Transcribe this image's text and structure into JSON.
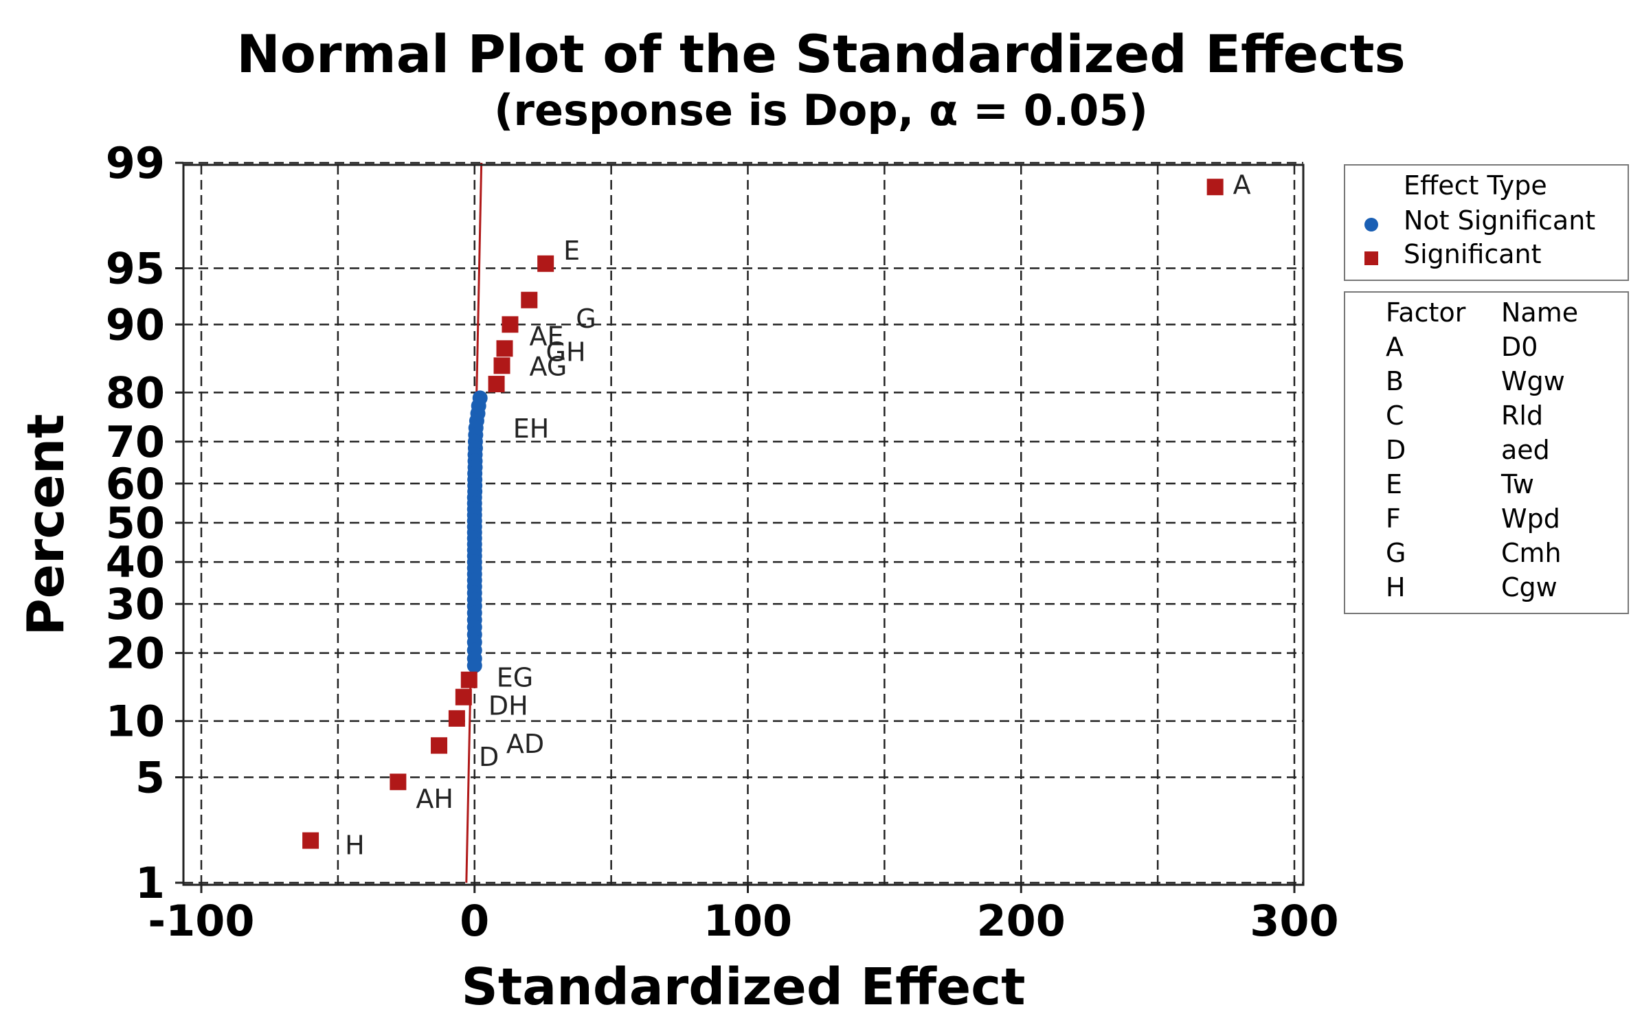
{
  "chart_data": {
    "type": "scatter",
    "title": "Normal Plot of the Standardized Effects",
    "subtitle": "(response is Dop, α = 0.05)",
    "xlabel": "Standardized Effect",
    "ylabel": "Percent",
    "xlim": [
      -105,
      305
    ],
    "xticks": [
      -100,
      0,
      100,
      200,
      300
    ],
    "xtick_labels": [
      "-100",
      "0",
      "100",
      "200",
      "300"
    ],
    "xgrid": [
      -100,
      -50,
      0,
      50,
      100,
      150,
      200,
      250,
      300
    ],
    "yticks": [
      1,
      5,
      10,
      20,
      30,
      40,
      50,
      60,
      70,
      80,
      90,
      95,
      99
    ],
    "ytick_labels": [
      "1",
      "5",
      "10",
      "20",
      "30",
      "40",
      "50",
      "60",
      "70",
      "80",
      "90",
      "95",
      "99"
    ],
    "grid": true,
    "reference_line": {
      "x_at_1": -3,
      "x_at_99": 2.5
    },
    "series": [
      {
        "name": "Significant",
        "marker": "square",
        "color": "#b01818",
        "points": [
          {
            "x": 271,
            "p": 98.5,
            "label": "A"
          },
          {
            "x": 26,
            "p": 95.3,
            "label": "E"
          },
          {
            "x": 20,
            "p": 92.5,
            "label": "G"
          },
          {
            "x": 13,
            "p": 90.0,
            "label": "AE"
          },
          {
            "x": 11,
            "p": 87.0,
            "label": "GH"
          },
          {
            "x": 10,
            "p": 84.5,
            "label": "AG"
          },
          {
            "x": 8,
            "p": 81.5,
            "label": ""
          },
          {
            "x": -2,
            "p": 15.5,
            "label": "EG"
          },
          {
            "x": -4,
            "p": 13.0,
            "label": "DH"
          },
          {
            "x": -6.5,
            "p": 10.3,
            "label": "AD"
          },
          {
            "x": -13,
            "p": 7.5,
            "label": "D"
          },
          {
            "x": -28,
            "p": 4.7,
            "label": "AH"
          },
          {
            "x": -60,
            "p": 2.0,
            "label": "H"
          }
        ]
      },
      {
        "name": "Not Significant",
        "marker": "circle",
        "color": "#1a5fb4",
        "points": [
          {
            "x": 2,
            "p": 79.0,
            "label": ""
          },
          {
            "x": 1.5,
            "p": 77.5,
            "label": "EH"
          },
          {
            "x": 1.2,
            "p": 76.0
          },
          {
            "x": 0.8,
            "p": 74.5
          },
          {
            "x": 0.5,
            "p": 73.0
          },
          {
            "x": 0.4,
            "p": 71.5
          },
          {
            "x": 0.3,
            "p": 70.0
          },
          {
            "x": 0.3,
            "p": 68.5
          },
          {
            "x": 0.2,
            "p": 67.0
          },
          {
            "x": 0.2,
            "p": 65.5
          },
          {
            "x": 0.2,
            "p": 64.0
          },
          {
            "x": 0.1,
            "p": 62.5
          },
          {
            "x": 0.1,
            "p": 61.0
          },
          {
            "x": 0.1,
            "p": 59.5
          },
          {
            "x": 0.1,
            "p": 58.0
          },
          {
            "x": 0.0,
            "p": 56.5
          },
          {
            "x": 0.0,
            "p": 55.0
          },
          {
            "x": 0.0,
            "p": 53.5
          },
          {
            "x": 0.0,
            "p": 52.0
          },
          {
            "x": 0.0,
            "p": 50.5
          },
          {
            "x": 0.0,
            "p": 49.0
          },
          {
            "x": 0.0,
            "p": 47.5
          },
          {
            "x": 0.0,
            "p": 46.0
          },
          {
            "x": 0.0,
            "p": 44.5
          },
          {
            "x": 0.0,
            "p": 43.0
          },
          {
            "x": 0.0,
            "p": 41.5
          },
          {
            "x": 0.0,
            "p": 40.0
          },
          {
            "x": 0.0,
            "p": 38.5
          },
          {
            "x": 0.0,
            "p": 37.0
          },
          {
            "x": 0.0,
            "p": 35.5
          },
          {
            "x": 0.0,
            "p": 34.0
          },
          {
            "x": 0.0,
            "p": 32.5
          },
          {
            "x": 0.0,
            "p": 31.0
          },
          {
            "x": 0.0,
            "p": 29.5
          },
          {
            "x": 0.0,
            "p": 28.0
          },
          {
            "x": 0.0,
            "p": 26.5
          },
          {
            "x": 0.0,
            "p": 25.0
          },
          {
            "x": 0.0,
            "p": 23.5
          },
          {
            "x": 0.0,
            "p": 22.0
          },
          {
            "x": 0.0,
            "p": 20.5
          },
          {
            "x": 0.0,
            "p": 19.0
          },
          {
            "x": 0.0,
            "p": 17.8
          }
        ]
      }
    ]
  },
  "legend": {
    "effect_type_title": "Effect Type",
    "entries": [
      {
        "label": "Not Significant",
        "marker": "circle",
        "color": "#1a5fb4"
      },
      {
        "label": "Significant",
        "marker": "square",
        "color": "#b01818"
      }
    ],
    "factor_header": "Factor",
    "name_header": "Name",
    "factors": [
      {
        "factor": "A",
        "name": "D0"
      },
      {
        "factor": "B",
        "name": "Wgw"
      },
      {
        "factor": "C",
        "name": "Rld"
      },
      {
        "factor": "D",
        "name": "aed"
      },
      {
        "factor": "E",
        "name": "Tw"
      },
      {
        "factor": "F",
        "name": "Wpd"
      },
      {
        "factor": "G",
        "name": "Cmh"
      },
      {
        "factor": "H",
        "name": "Cgw"
      }
    ]
  }
}
